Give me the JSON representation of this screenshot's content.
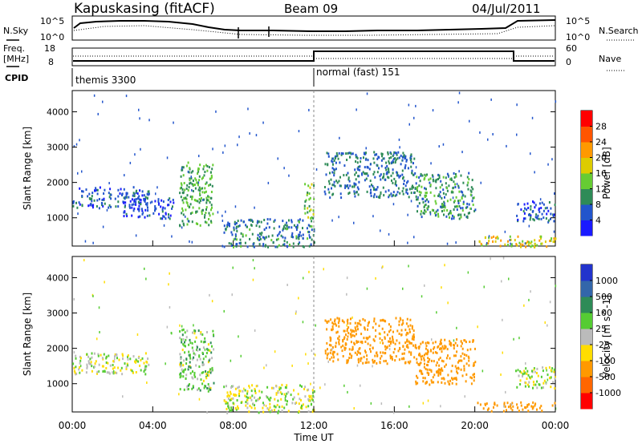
{
  "header": {
    "station": "Kapuskasing (fitACF)",
    "beam": "Beam 09",
    "date": "04/Jul/2011"
  },
  "noise_panel": {
    "left_label": "N.Sky",
    "right_label": "N.Search",
    "left_ticks": [
      "10^5",
      "10^0"
    ],
    "right_ticks": [
      "10^5",
      "10^0"
    ]
  },
  "freq_panel": {
    "left_label_1": "Freq.",
    "left_label_2": "[MHz]",
    "left_ticks": [
      "18",
      "8"
    ],
    "right_label": "Nave",
    "right_ticks": [
      "60",
      "0"
    ]
  },
  "cpid_panel": {
    "label": "CPID",
    "segments": [
      {
        "start_hour": 0,
        "label": "themis 3300"
      },
      {
        "start_hour": 12,
        "label": "normal (fast) 151"
      }
    ]
  },
  "chart_data": [
    {
      "type": "heatmap",
      "title": "",
      "xlabel": "Time UT",
      "ylabel": "Slant Range [km]",
      "xlim": [
        0,
        24
      ],
      "ylim": [
        200,
        4600
      ],
      "x_tick_labels": [
        "00:00",
        "04:00",
        "08:00",
        "12:00",
        "16:00",
        "20:00",
        "00:00"
      ],
      "y_ticks": [
        1000,
        2000,
        3000,
        4000
      ],
      "colorbar": {
        "label": "Power [dB]",
        "tick_labels": [
          "4",
          "8",
          "12",
          "16",
          "20",
          "24",
          "28"
        ],
        "colors": [
          "#1a1aff",
          "#2255cc",
          "#2e8b57",
          "#66cc33",
          "#ddcc00",
          "#ff9900",
          "#ff5500",
          "#ff0000"
        ]
      },
      "regions": [
        {
          "t0": 0.0,
          "t1": 3.8,
          "r0": 1300,
          "r1": 1900,
          "value": 6
        },
        {
          "t0": 2.5,
          "t1": 5.0,
          "r0": 1000,
          "r1": 1600,
          "value": 5
        },
        {
          "t0": 5.3,
          "t1": 7.0,
          "r0": 800,
          "r1": 2600,
          "value": 12
        },
        {
          "t0": 7.5,
          "t1": 12.0,
          "r0": 200,
          "r1": 1000,
          "value": 9
        },
        {
          "t0": 11.5,
          "t1": 12.0,
          "r0": 1000,
          "r1": 2000,
          "value": 14
        },
        {
          "t0": 12.5,
          "t1": 17.0,
          "r0": 1600,
          "r1": 2900,
          "value": 8
        },
        {
          "t0": 17.0,
          "t1": 20.0,
          "r0": 1000,
          "r1": 2300,
          "value": 10
        },
        {
          "t0": 20.0,
          "t1": 24.0,
          "r0": 200,
          "r1": 500,
          "value": 18
        },
        {
          "t0": 22.0,
          "t1": 24.0,
          "r0": 900,
          "r1": 1500,
          "value": 6
        }
      ]
    },
    {
      "type": "heatmap",
      "title": "",
      "xlabel": "Time UT",
      "ylabel": "Slant Range [km]",
      "xlim": [
        0,
        24
      ],
      "ylim": [
        200,
        4600
      ],
      "x_tick_labels": [
        "00:00",
        "04:00",
        "08:00",
        "12:00",
        "16:00",
        "20:00",
        "00:00"
      ],
      "y_ticks": [
        1000,
        2000,
        3000,
        4000
      ],
      "colorbar": {
        "label": "Velocity [m s^-1]",
        "tick_labels": [
          "1000",
          "500",
          "100",
          "25",
          "-25",
          "-100",
          "-500",
          "-1000"
        ],
        "colors": [
          "#2233cc",
          "#3366aa",
          "#2e8b57",
          "#55cc33",
          "#bbbbbb",
          "#ffdd00",
          "#ff9900",
          "#ff6600",
          "#ff0000"
        ]
      },
      "regions": [
        {
          "t0": 0.0,
          "t1": 3.8,
          "r0": 1300,
          "r1": 1900,
          "value": 0
        },
        {
          "t0": 5.3,
          "t1": 7.0,
          "r0": 800,
          "r1": 2600,
          "value": 50
        },
        {
          "t0": 7.5,
          "t1": 12.0,
          "r0": 200,
          "r1": 1000,
          "value": 0
        },
        {
          "t0": 12.5,
          "t1": 17.0,
          "r0": 1600,
          "r1": 2900,
          "value": -300
        },
        {
          "t0": 17.0,
          "t1": 20.0,
          "r0": 1000,
          "r1": 2300,
          "value": -300
        },
        {
          "t0": 20.0,
          "t1": 24.0,
          "r0": 250,
          "r1": 500,
          "value": -300
        },
        {
          "t0": 22.0,
          "t1": 24.0,
          "r0": 900,
          "r1": 1500,
          "value": 0
        }
      ]
    }
  ]
}
